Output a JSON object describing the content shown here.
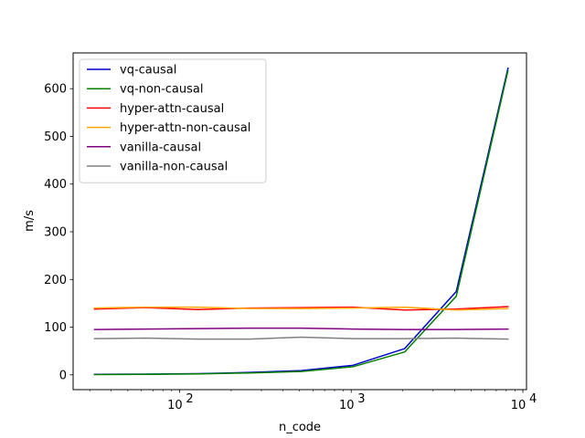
{
  "chart_data": {
    "type": "line",
    "xlabel": "n_code",
    "ylabel": "m/s",
    "xscale": "log",
    "xlim": [
      24,
      10500
    ],
    "ylim": [
      -31,
      675
    ],
    "xticks": [
      {
        "value": 100,
        "base": "10",
        "exp": "2"
      },
      {
        "value": 1000,
        "base": "10",
        "exp": "3"
      },
      {
        "value": 10000,
        "base": "10",
        "exp": "4"
      }
    ],
    "yticks": [
      0,
      100,
      200,
      300,
      400,
      500,
      600
    ],
    "legend_position": "top-left",
    "grid": false,
    "x": [
      32,
      64,
      128,
      256,
      512,
      1024,
      2048,
      4096,
      8192
    ],
    "series": [
      {
        "name": "vq-causal",
        "color": "#0000cc",
        "values": [
          1,
          1.5,
          2.5,
          5,
          9,
          20,
          55,
          175,
          643
        ]
      },
      {
        "name": "vq-non-causal",
        "color": "#008000",
        "values": [
          0.5,
          1,
          2,
          4,
          7,
          17,
          48,
          165,
          638
        ]
      },
      {
        "name": "hyper-attn-causal",
        "color": "#ff0000",
        "values": [
          138,
          141,
          137,
          140,
          141,
          142,
          136,
          138,
          143
        ]
      },
      {
        "name": "hyper-attn-non-causal",
        "color": "#ffa500",
        "values": [
          140,
          142,
          142,
          139,
          139,
          140,
          142,
          136,
          139
        ]
      },
      {
        "name": "vanilla-causal",
        "color": "#800080",
        "values": [
          95,
          96,
          97,
          98,
          98,
          96,
          95,
          95,
          96
        ]
      },
      {
        "name": "vanilla-non-causal",
        "color": "#808080",
        "values": [
          76,
          77,
          75,
          75,
          79,
          76,
          76,
          77,
          75
        ]
      }
    ]
  }
}
